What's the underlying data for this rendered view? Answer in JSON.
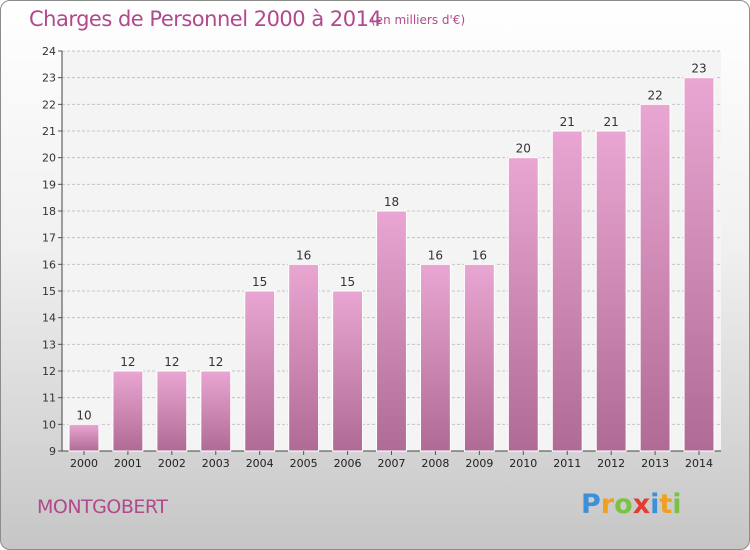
{
  "title": "Charges de Personnel 2000 à 2014",
  "subtitle": "(en milliers d'€)",
  "commune": "MONTGOBERT",
  "logo": {
    "letters": [
      "P",
      "r",
      "o",
      "x",
      "i",
      "t",
      "i"
    ],
    "colors": [
      "#3d8fd6",
      "#f0a020",
      "#7cc242",
      "#e23b2f",
      "#3d8fd6",
      "#f0a020",
      "#7cc242"
    ]
  },
  "colors": {
    "bar_top": "#eaa6d2",
    "bar_bottom": "#b06a96",
    "text_accent": "#b04a8c"
  },
  "chart_data": {
    "type": "bar",
    "categories": [
      "2000",
      "2001",
      "2002",
      "2003",
      "2004",
      "2005",
      "2006",
      "2007",
      "2008",
      "2009",
      "2010",
      "2011",
      "2012",
      "2013",
      "2014"
    ],
    "values": [
      10,
      12,
      12,
      12,
      15,
      16,
      15,
      18,
      16,
      16,
      20,
      21,
      21,
      22,
      23
    ],
    "ylim": [
      9,
      24
    ],
    "yticks": [
      9,
      10,
      11,
      12,
      13,
      14,
      15,
      16,
      17,
      18,
      19,
      20,
      21,
      22,
      23,
      24
    ],
    "grid": true
  }
}
